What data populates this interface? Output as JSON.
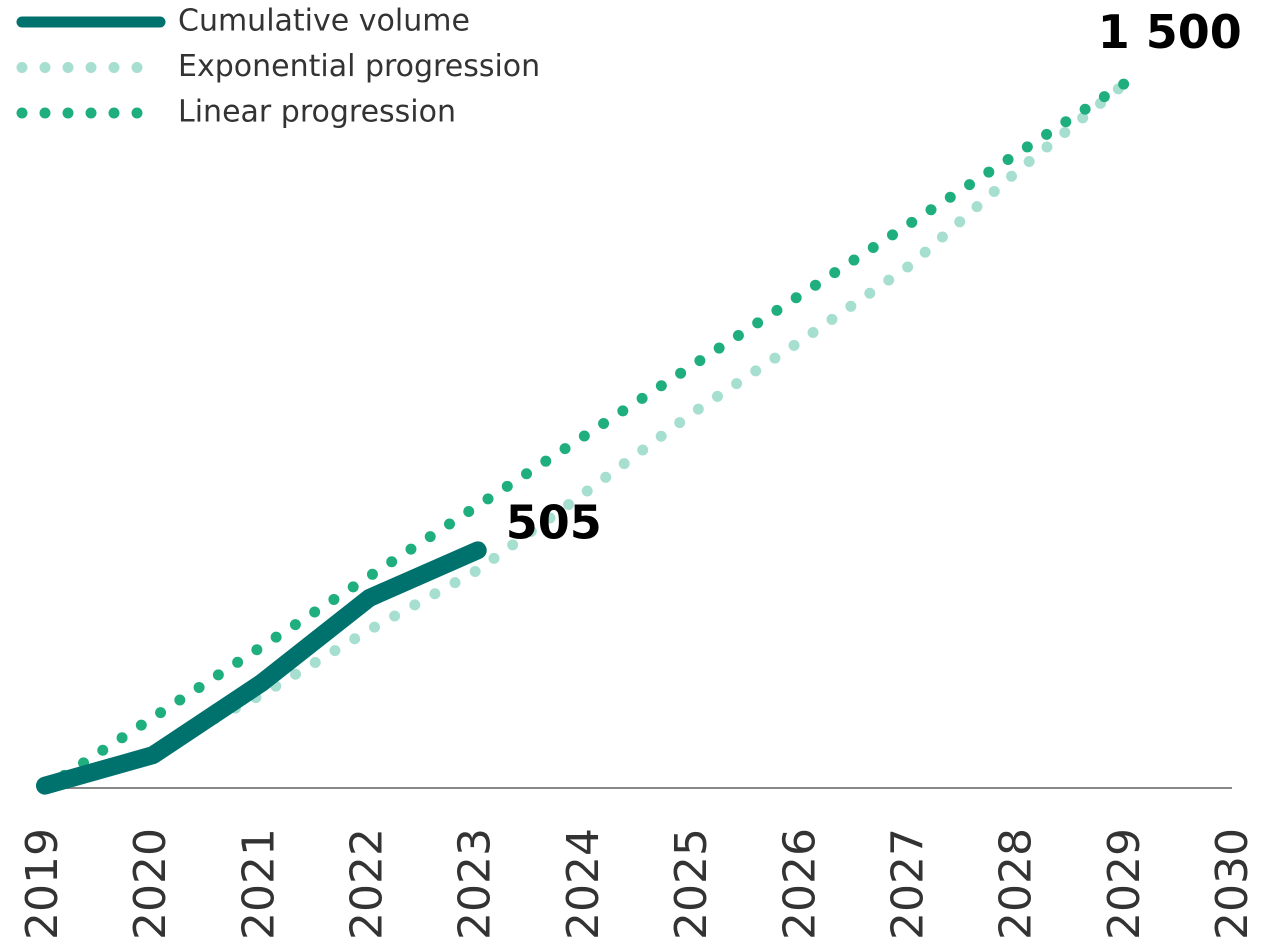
{
  "chart_data": {
    "type": "line",
    "x": [
      2019,
      2020,
      2021,
      2022,
      2023,
      2024,
      2025,
      2026,
      2027,
      2028,
      2029
    ],
    "series": [
      {
        "name": "Cumulative volume",
        "color": "#00726e",
        "style": "solid",
        "values": [
          5,
          70,
          223,
          404,
          505,
          null,
          null,
          null,
          null,
          null,
          null
        ]
      },
      {
        "name": "Exponential progression",
        "color": "#a6dfd0",
        "style": "dotted",
        "values": [
          0,
          80,
          198,
          336,
          463,
          629,
          799,
          952,
          1111,
          1313,
          1500
        ]
      },
      {
        "name": "Linear progression",
        "color": "#1fae7e",
        "style": "dotted",
        "values": [
          0,
          150,
          300,
          450,
          600,
          750,
          900,
          1050,
          1200,
          1350,
          1500
        ],
        "value_labels": [
          null,
          null,
          null,
          null,
          null,
          null,
          null,
          null,
          null,
          null,
          "1 500"
        ]
      }
    ],
    "xlim": [
      2019,
      2030
    ],
    "xticks": [
      2019,
      2020,
      2021,
      2022,
      2023,
      2024,
      2025,
      2026,
      2027,
      2028,
      2029,
      2030
    ],
    "ylim": [
      0,
      1500
    ],
    "legend": "top-left"
  }
}
